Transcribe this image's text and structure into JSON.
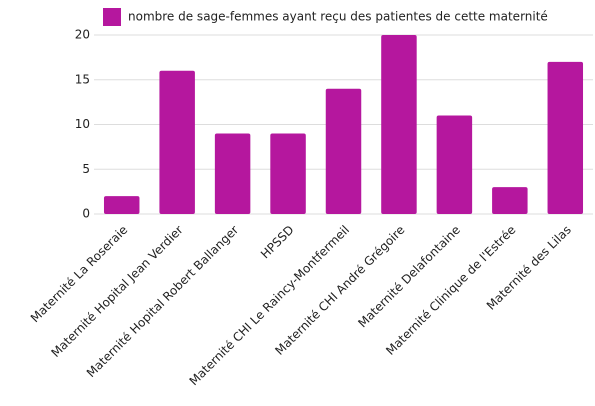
{
  "chart_data": {
    "type": "bar",
    "categories": [
      "Maternité La Roseraie",
      "Maternité Hopital Jean Verdier",
      "Maternité Hopital Robert Ballanger",
      "HPSSD",
      "Maternité CHI Le Raincy-Montfermeil",
      "Maternité CHI André Grégoire",
      "Maternité Delafontaine",
      "Maternité Clinique de l'Estrée",
      "Maternité des Lilas"
    ],
    "series": [
      {
        "name": "nombre de sage-femmes ayant reçu des patientes de cette maternité",
        "color": "#b5179e",
        "values": [
          2,
          16,
          9,
          9,
          14,
          20,
          11,
          3,
          17
        ]
      }
    ],
    "ylim": [
      0,
      20
    ],
    "yticks": [
      0,
      5,
      10,
      15,
      20
    ],
    "grid": true,
    "legend": "top"
  }
}
